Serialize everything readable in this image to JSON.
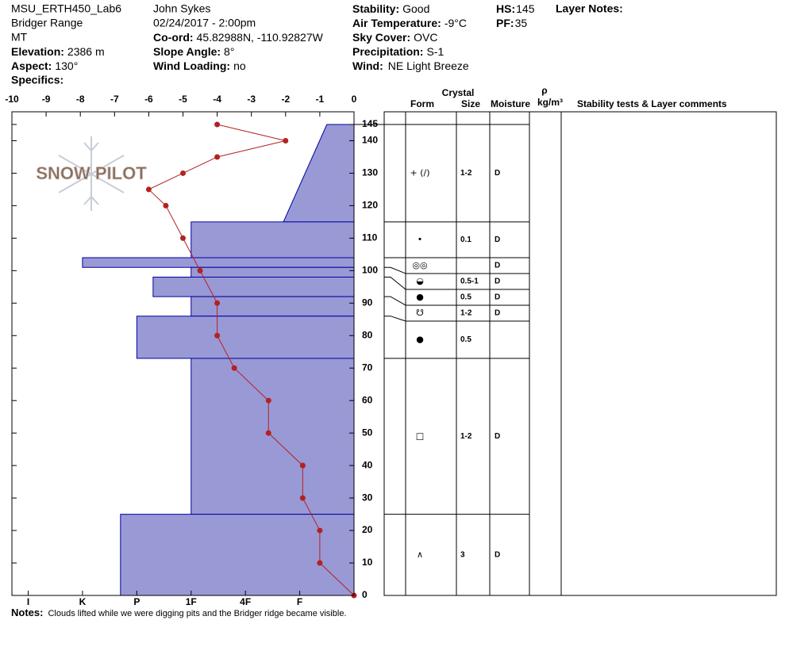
{
  "header": {
    "site": "MSU_ERTH450_Lab6",
    "range": "Bridger Range",
    "state": "MT",
    "elevation": {
      "label": "Elevation:",
      "value": "2386 m"
    },
    "aspect": {
      "label": "Aspect:",
      "value": "130°"
    },
    "specifics": {
      "label": "Specifics:"
    },
    "observer": "John Sykes",
    "datetime": "02/24/2017 - 2:00pm",
    "coord": {
      "label": "Co-ord:",
      "value": "45.82988N, -110.92827W"
    },
    "slope": {
      "label": "Slope Angle:",
      "value": "8°"
    },
    "wind_loading": {
      "label": "Wind Loading:",
      "value": "no"
    },
    "stability": {
      "label": "Stability:",
      "value": "Good"
    },
    "air_temp": {
      "label": "Air Temperature:",
      "value": "-9°C"
    },
    "sky": {
      "label": "Sky Cover:",
      "value": "OVC"
    },
    "precip": {
      "label": "Precipitation:",
      "value": "S-1"
    },
    "wind": {
      "label": "Wind:",
      "value": "NE Light Breeze"
    },
    "hs": {
      "label": "HS:",
      "value": 145
    },
    "pf": {
      "label": "PF:",
      "value": 35
    },
    "layer_notes": {
      "label": "Layer Notes:"
    }
  },
  "notes": {
    "label": "Notes:",
    "text": "Clouds lifted while we were digging pits and the Bridger ridge became visible."
  },
  "logo": "SNOW PILOT",
  "chart_data": {
    "type": "snow-profile",
    "temperature": {
      "heights": [
        145,
        140,
        135,
        130,
        125,
        120,
        110,
        100,
        90,
        80,
        70,
        60,
        50,
        40,
        30,
        20,
        10,
        0
      ],
      "values": [
        -4,
        -2,
        -4,
        -5,
        -6,
        -5.5,
        -5,
        -4.5,
        -4,
        -4,
        -3.5,
        -2.5,
        -2.5,
        -1.5,
        -1.5,
        -1,
        -1,
        0
      ],
      "color": "#b22222",
      "xlim": [
        -10,
        0
      ],
      "xticks": [
        -10,
        -9,
        -8,
        -7,
        -6,
        -5,
        -4,
        -3,
        -2,
        -1,
        0
      ]
    },
    "height": {
      "ylim": [
        0,
        145
      ],
      "yticks": [
        0,
        10,
        20,
        30,
        40,
        50,
        60,
        70,
        80,
        90,
        100,
        110,
        120,
        130,
        140,
        145
      ]
    },
    "hardness": {
      "xlim": [
        0,
        6.3
      ],
      "color": "#9999d6",
      "xticks": [
        {
          "value": 6,
          "label": "I"
        },
        {
          "value": 5,
          "label": "K"
        },
        {
          "value": 4,
          "label": "P"
        },
        {
          "value": 3,
          "label": "1F"
        },
        {
          "value": 2,
          "label": "4F"
        },
        {
          "value": 1,
          "label": "F"
        }
      ]
    },
    "columns": {
      "crystal": "Crystal",
      "form": "Form",
      "size": "Size",
      "moisture": "Moisture",
      "rho": "ρ",
      "density_unit": "kg/m³",
      "comments": "Stability tests & Layer comments"
    },
    "layers": [
      {
        "top": 145,
        "bottom": 115,
        "hardness_top": 0.5,
        "hardness_bottom": 1.3,
        "form": "+ (/)",
        "size": "1-2",
        "moisture": "D"
      },
      {
        "top": 115,
        "bottom": 104,
        "hardness_top": 3,
        "hardness_bottom": 3,
        "form": "•",
        "size": "0.1",
        "moisture": "D"
      },
      {
        "top": 104,
        "bottom": 101,
        "hardness_top": 5,
        "hardness_bottom": 5,
        "form": "◎◎",
        "moisture": "D"
      },
      {
        "top": 101,
        "bottom": 98,
        "hardness_top": 3,
        "hardness_bottom": 3,
        "form": "◒",
        "size": "0.5-1",
        "moisture": "D"
      },
      {
        "top": 98,
        "bottom": 92,
        "hardness_top": 3.7,
        "hardness_bottom": 3.7,
        "form": "●",
        "size": "0.5",
        "moisture": "D"
      },
      {
        "top": 92,
        "bottom": 86,
        "hardness_top": 3,
        "hardness_bottom": 3,
        "form": "☋",
        "size": "1-2",
        "moisture": "D"
      },
      {
        "top": 86,
        "bottom": 73,
        "hardness_top": 4,
        "hardness_bottom": 4,
        "form": "●",
        "size": "0.5"
      },
      {
        "top": 73,
        "bottom": 25,
        "hardness_top": 3,
        "hardness_bottom": 3,
        "form": "□",
        "size": "1-2",
        "moisture": "D"
      },
      {
        "top": 25,
        "bottom": 0,
        "hardness_top": 4.3,
        "hardness_bottom": 4.3,
        "form": "∧",
        "size": "3",
        "moisture": "D"
      }
    ]
  }
}
